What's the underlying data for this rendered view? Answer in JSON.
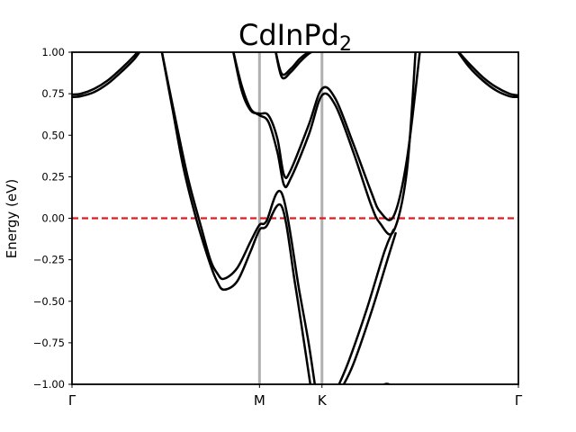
{
  "chart_data": {
    "type": "line",
    "title_main": "CdInPd",
    "title_sub": "2",
    "ylabel": "Energy (eV)",
    "xlabel": "",
    "ylim": [
      -1.0,
      1.0
    ],
    "xlim": [
      0,
      1
    ],
    "yticks": [
      "1.00",
      "0.75",
      "0.50",
      "0.25",
      "0.00",
      "−0.25",
      "−0.50",
      "−0.75",
      "−1.00"
    ],
    "ytick_values": [
      1.0,
      0.75,
      0.5,
      0.25,
      0.0,
      -0.25,
      -0.5,
      -0.75,
      -1.0
    ],
    "kpoints": [
      {
        "label": "Γ",
        "x": 0.0
      },
      {
        "label": "M",
        "x": 0.42
      },
      {
        "label": "K",
        "x": 0.56
      },
      {
        "label": "Γ",
        "x": 1.0
      }
    ],
    "fermi_level": 0.0,
    "colors": {
      "bands": "#000000",
      "fermi": "#e31a1c",
      "kpath_lines": "#b0b0b0"
    },
    "grid": false,
    "series": [
      {
        "x": [
          0.0,
          0.02,
          0.05,
          0.08,
          0.11,
          0.14,
          0.156
        ],
        "values": [
          0.73,
          0.735,
          0.76,
          0.81,
          0.88,
          0.96,
          1.02
        ]
      },
      {
        "x": [
          0.0,
          0.02,
          0.05,
          0.08,
          0.11,
          0.14,
          0.152
        ],
        "values": [
          0.745,
          0.75,
          0.78,
          0.83,
          0.9,
          0.98,
          1.02
        ]
      },
      {
        "x": [
          0.86,
          0.89,
          0.92,
          0.95,
          0.98,
          1.0
        ],
        "values": [
          1.02,
          0.93,
          0.85,
          0.79,
          0.75,
          0.74
        ]
      },
      {
        "x": [
          0.86,
          0.89,
          0.92,
          0.95,
          0.98,
          1.0
        ],
        "values": [
          1.02,
          0.91,
          0.83,
          0.77,
          0.735,
          0.73
        ]
      },
      {
        "x": [
          0.2,
          0.23,
          0.26,
          0.29,
          0.31,
          0.325,
          0.34,
          0.37,
          0.4,
          0.42,
          0.435,
          0.47,
          0.51,
          0.53,
          0.545
        ],
        "values": [
          1.02,
          0.62,
          0.24,
          -0.06,
          -0.25,
          -0.33,
          -0.365,
          -0.3,
          -0.14,
          -0.04,
          -0.02,
          0.15,
          -0.45,
          -0.75,
          -1.02
        ]
      },
      {
        "x": [
          0.2,
          0.225,
          0.25,
          0.28,
          0.31,
          0.325,
          0.34,
          0.37,
          0.4,
          0.42,
          0.435,
          0.47,
          0.5,
          0.52,
          0.535
        ],
        "values": [
          1.02,
          0.66,
          0.3,
          -0.02,
          -0.28,
          -0.38,
          -0.43,
          -0.38,
          -0.2,
          -0.07,
          -0.05,
          0.07,
          -0.4,
          -0.75,
          -1.02
        ]
      },
      {
        "x": [
          0.36,
          0.38,
          0.4,
          0.42,
          0.44,
          0.46,
          0.475,
          0.49,
          0.53,
          0.56,
          0.59,
          0.63,
          0.67,
          0.69,
          0.72,
          0.75,
          0.78
        ],
        "values": [
          1.02,
          0.77,
          0.65,
          0.63,
          0.62,
          0.48,
          0.26,
          0.29,
          0.56,
          0.78,
          0.72,
          0.45,
          0.16,
          0.04,
          0.01,
          0.35,
          1.02
        ]
      },
      {
        "x": [
          0.36,
          0.38,
          0.4,
          0.42,
          0.44,
          0.46,
          0.475,
          0.49,
          0.53,
          0.56,
          0.59,
          0.63,
          0.67,
          0.69,
          0.72,
          0.75,
          0.77
        ],
        "values": [
          1.02,
          0.8,
          0.66,
          0.62,
          0.58,
          0.4,
          0.2,
          0.24,
          0.5,
          0.74,
          0.68,
          0.4,
          0.08,
          -0.03,
          -0.08,
          0.28,
          1.02
        ]
      },
      {
        "x": [
          0.455,
          0.47,
          0.49,
          0.51,
          0.53,
          0.55
        ],
        "values": [
          1.02,
          0.87,
          0.9,
          0.96,
          1.0,
          1.02
        ]
      },
      {
        "x": [
          0.455,
          0.47,
          0.49,
          0.51,
          0.53,
          0.55
        ],
        "values": [
          1.02,
          0.85,
          0.88,
          0.94,
          0.99,
          1.02
        ]
      },
      {
        "x": [
          0.595,
          0.62,
          0.66,
          0.7,
          0.72
        ],
        "values": [
          -1.02,
          -0.86,
          -0.55,
          -0.2,
          -0.07
        ]
      },
      {
        "x": [
          0.605,
          0.63,
          0.67,
          0.71,
          0.725
        ],
        "values": [
          -1.02,
          -0.88,
          -0.57,
          -0.22,
          -0.09
        ]
      },
      {
        "x": [
          0.69,
          0.7,
          0.71,
          0.715
        ],
        "values": [
          -1.02,
          -1.0,
          -1.0,
          -1.02
        ]
      }
    ]
  }
}
